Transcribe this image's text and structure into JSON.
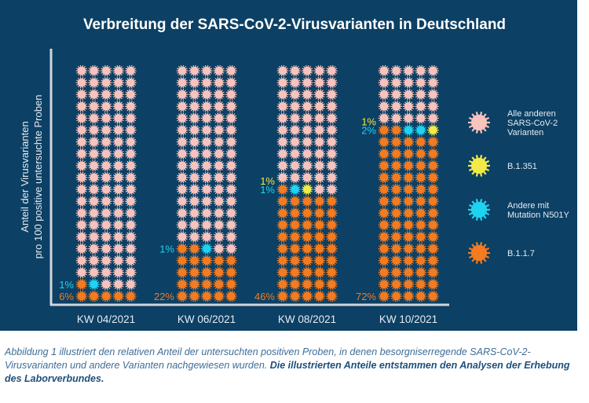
{
  "chart_data": {
    "type": "waffle",
    "title": "Verbreitung der SARS-CoV-2-Virusvarianten in Deutschland",
    "ylabel": [
      "Anteil der Virusvarianten",
      "pro 100 positive untersuchte Proben"
    ],
    "categories": [
      "KW 04/2021",
      "KW 06/2021",
      "KW 08/2021",
      "KW 10/2021"
    ],
    "grid": {
      "columns": 5,
      "rows": 20
    },
    "series": [
      {
        "name": "B.1.1.7",
        "color": "#f47b20",
        "values": [
          6,
          22,
          46,
          72
        ]
      },
      {
        "name": "Andere mit Mutation N501Y",
        "color": "#1fd3f0",
        "values": [
          1,
          1,
          1,
          2
        ]
      },
      {
        "name": "B.1.351",
        "color": "#f2ea47",
        "values": [
          0,
          0,
          1,
          1
        ]
      },
      {
        "name": "Alle anderen SARS-CoV-2 Varianten",
        "color": "#f8c3bd",
        "values": [
          93,
          77,
          52,
          25
        ]
      }
    ],
    "data_labels": [
      {
        "orange": "6%",
        "cyan": "1%",
        "yellow": ""
      },
      {
        "orange": "22%",
        "cyan": "1%",
        "yellow": ""
      },
      {
        "orange": "46%",
        "cyan": "1%",
        "yellow": "1%"
      },
      {
        "orange": "72%",
        "cyan": "2%",
        "yellow": "1%"
      }
    ],
    "legend": {
      "placement": "right",
      "entries": [
        {
          "lines": [
            "Alle anderen",
            "SARS-CoV-2",
            "Varianten"
          ],
          "color": "#f8c3bd"
        },
        {
          "lines": [
            "B.1.351"
          ],
          "color": "#f2ea47"
        },
        {
          "lines": [
            "Andere mit",
            "Mutation N501Y"
          ],
          "color": "#1fd3f0"
        },
        {
          "lines": [
            "B.1.1.7"
          ],
          "color": "#f47b20"
        }
      ]
    }
  },
  "caption": {
    "normal": "Abbildung 1 illustriert den relativen Anteil der untersuchten positiven Proben, in denen besorgniserregende SARS-CoV-2-Virusvarianten und andere Varianten nachgewiesen wurden. ",
    "bold": "Die illustrierten Anteile entstammen den Analysen der Erhebung des Laborverbundes."
  }
}
